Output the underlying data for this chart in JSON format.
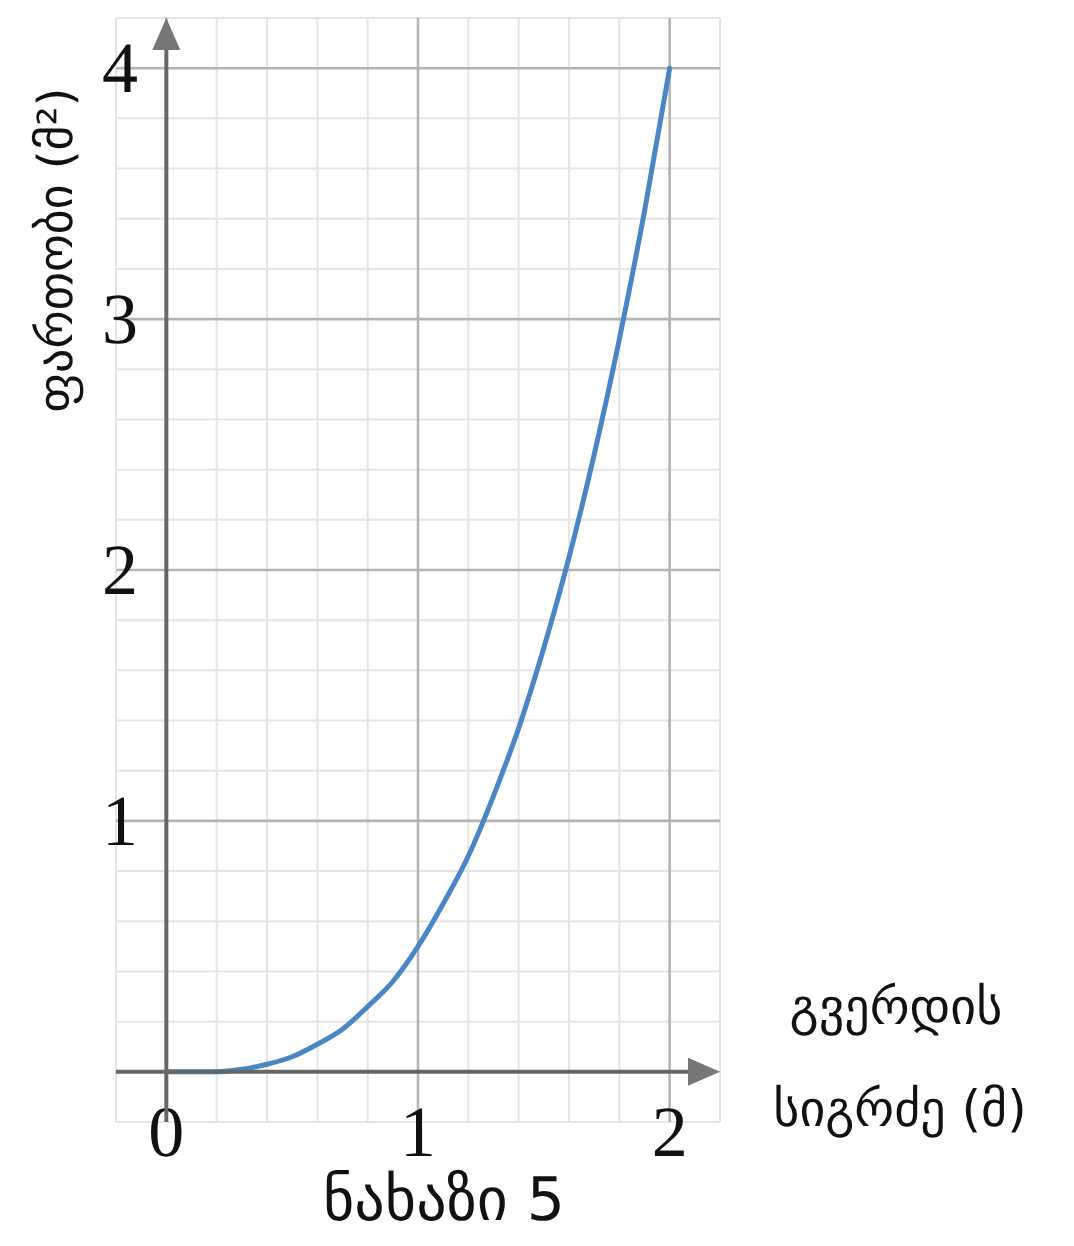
{
  "chart_data": {
    "type": "line",
    "title": "ნახაზი 5",
    "xlabel": "გვერდის სიგრძე (მ)",
    "ylabel": "ფართობი (მ²)",
    "x": [
      0,
      0.1,
      0.2,
      0.3,
      0.4,
      0.5,
      0.6,
      0.7,
      0.8,
      0.9,
      1,
      1.1,
      1.2,
      1.3,
      1.4,
      1.5,
      1.6,
      1.7,
      1.8,
      1.9,
      2
    ],
    "series": [
      {
        "color": "#4a86c6",
        "values": [
          0,
          0,
          0,
          0.01,
          0.03,
          0.06,
          0.11,
          0.17,
          0.26,
          0.36,
          0.5,
          0.67,
          0.86,
          1.1,
          1.37,
          1.69,
          2.05,
          2.46,
          2.92,
          3.43,
          4
        ]
      }
    ],
    "xlim": [
      -0.2,
      2.2
    ],
    "ylim": [
      -0.2,
      4.2
    ],
    "xticks": [
      {
        "value": -0.2,
        "label": null
      },
      0,
      {
        "value": 0.2,
        "label": null
      },
      {
        "value": 0.4,
        "label": null
      },
      {
        "value": 0.6,
        "label": null
      },
      {
        "value": 0.8,
        "label": null
      },
      1,
      {
        "value": 1.2,
        "label": null
      },
      {
        "value": 1.4,
        "label": null
      },
      {
        "value": 1.6,
        "label": null
      },
      {
        "value": 1.8,
        "label": null
      },
      2,
      {
        "value": 2.2,
        "label": null
      }
    ],
    "yticks": [
      {
        "value": -0.2,
        "label": null
      },
      {
        "value": 0,
        "label": null
      },
      {
        "value": 0.2,
        "label": null
      },
      {
        "value": 0.4,
        "label": null
      },
      {
        "value": 0.6,
        "label": null
      },
      {
        "value": 0.8,
        "label": null
      },
      1,
      {
        "value": 1.2,
        "label": null
      },
      {
        "value": 1.4,
        "label": null
      },
      {
        "value": 1.6,
        "label": null
      },
      {
        "value": 1.8,
        "label": null
      },
      2,
      {
        "value": 2.2,
        "label": null
      },
      {
        "value": 2.4,
        "label": null
      },
      {
        "value": 2.6,
        "label": null
      },
      {
        "value": 2.8,
        "label": null
      },
      3,
      {
        "value": 3.2,
        "label": null
      },
      {
        "value": 3.4,
        "label": null
      },
      {
        "value": 3.6,
        "label": null
      },
      {
        "value": 3.8,
        "label": null
      },
      4,
      {
        "value": 4.2,
        "label": null
      }
    ],
    "grid": true
  }
}
